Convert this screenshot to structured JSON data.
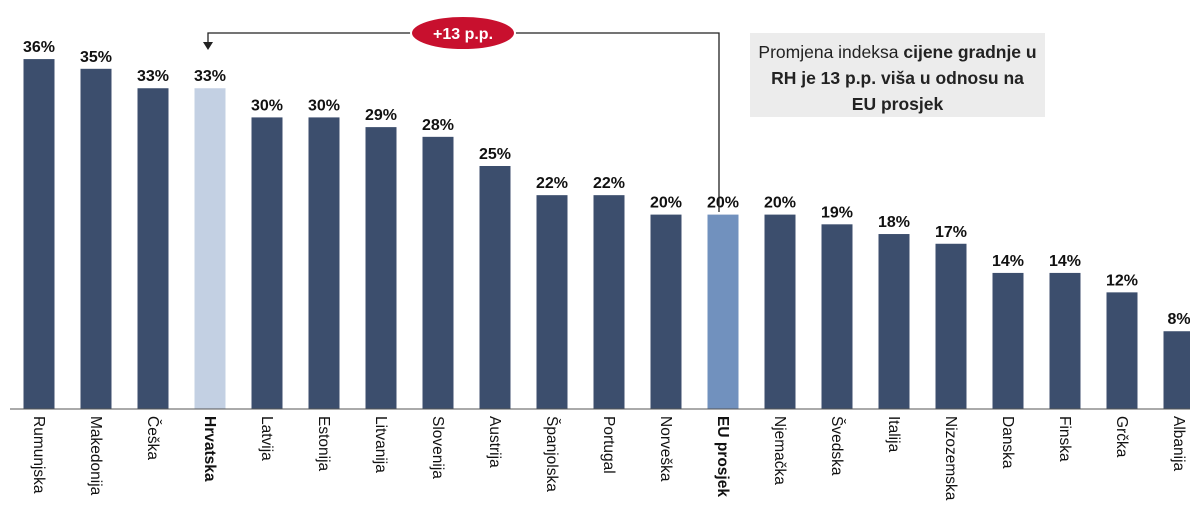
{
  "chart_data": {
    "type": "bar",
    "categories": [
      "Rumunjska",
      "Makedonija",
      "Češka",
      "Hrvatska",
      "Latvija",
      "Estonija",
      "Litvanija",
      "Slovenija",
      "Austrija",
      "Španjolska",
      "Portugal",
      "Norveška",
      "EU prosjek",
      "Njemačka",
      "Švedska",
      "Italija",
      "Nizozemska",
      "Danska",
      "Finska",
      "Grčka",
      "Albanija"
    ],
    "values": [
      36,
      35,
      33,
      33,
      30,
      30,
      29,
      28,
      25,
      22,
      22,
      20,
      20,
      20,
      19,
      18,
      17,
      14,
      14,
      12,
      8
    ],
    "value_labels": [
      "36%",
      "35%",
      "33%",
      "33%",
      "30%",
      "30%",
      "29%",
      "28%",
      "25%",
      "22%",
      "22%",
      "20%",
      "20%",
      "20%",
      "19%",
      "18%",
      "17%",
      "14%",
      "14%",
      "12%",
      "8%"
    ],
    "highlighted": {
      "Hrvatska": "light",
      "EU prosjek": "medium"
    },
    "bold_categories": [
      "Hrvatska",
      "EU prosjek"
    ],
    "ylim": [
      0,
      36
    ],
    "grid": false,
    "annotations": {
      "difference_badge": "+13 p.p.",
      "note_parts": [
        {
          "text": "Promjena indeksa ",
          "bold": false
        },
        {
          "text": "cijene gradnje u RH je 13 p.p. viša u odnosu na EU prosjek",
          "bold": true
        }
      ]
    }
  },
  "colors": {
    "bar": "#3c4e6d",
    "bar_hrvatska": "#c3d0e3",
    "bar_eu": "#7191be",
    "badge_fill": "#c8102e",
    "badge_text": "#ffffff",
    "note_background": "#ececec",
    "text": "#111111"
  }
}
